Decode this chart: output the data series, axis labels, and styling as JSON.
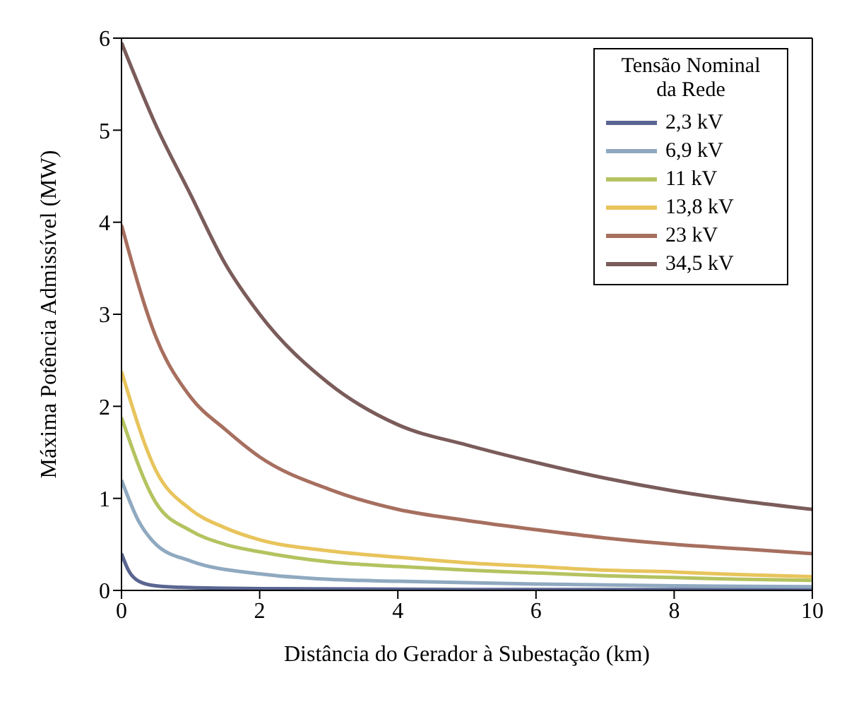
{
  "chart_data": {
    "type": "line",
    "xlabel": "Distância do Gerador à Subestação (km)",
    "ylabel": "Máxima Potência Admissível (MW)",
    "legend_title": "Tensão Nominal da Rede",
    "legend": "top right",
    "grid": false,
    "marker": "none",
    "line_style": "solid",
    "xlim": [
      0,
      10
    ],
    "xticks": [
      0,
      2,
      4,
      6,
      8,
      10
    ],
    "ylim": [
      0,
      6
    ],
    "yticks": [
      0,
      1,
      2,
      3,
      4,
      5,
      6
    ],
    "series": [
      {
        "name": "2,3 kV",
        "color": "#5a6591",
        "x": [
          0,
          0.1,
          0.25,
          0.5,
          1,
          2,
          5,
          10
        ],
        "values": [
          0.4,
          0.22,
          0.1,
          0.05,
          0.03,
          0.02,
          0.01,
          0.01
        ]
      },
      {
        "name": "6,9 kV",
        "color": "#8fa9c0",
        "x": [
          0,
          0.25,
          0.5,
          1,
          2,
          3,
          4,
          6,
          8,
          10
        ],
        "values": [
          1.2,
          0.75,
          0.5,
          0.32,
          0.18,
          0.12,
          0.1,
          0.07,
          0.05,
          0.04
        ]
      },
      {
        "name": "11 kV",
        "color": "#b5c360",
        "x": [
          0,
          0.5,
          1,
          1.5,
          2,
          3,
          4,
          5,
          6,
          7,
          8,
          9,
          10
        ],
        "values": [
          1.88,
          0.95,
          0.65,
          0.5,
          0.42,
          0.31,
          0.26,
          0.22,
          0.19,
          0.16,
          0.14,
          0.12,
          0.11
        ]
      },
      {
        "name": "13,8 kV",
        "color": "#e8c45c",
        "x": [
          0,
          0.5,
          1,
          1.5,
          2,
          3,
          4,
          5,
          6,
          7,
          8,
          9,
          10
        ],
        "values": [
          2.38,
          1.3,
          0.88,
          0.68,
          0.55,
          0.43,
          0.36,
          0.3,
          0.26,
          0.22,
          0.2,
          0.17,
          0.15
        ]
      },
      {
        "name": "23 kV",
        "color": "#a76f5f",
        "x": [
          0,
          0.5,
          1,
          1.5,
          2,
          3,
          4,
          5,
          6,
          7,
          8,
          9,
          10
        ],
        "values": [
          3.97,
          2.75,
          2.1,
          1.75,
          1.45,
          1.1,
          0.88,
          0.76,
          0.66,
          0.57,
          0.5,
          0.45,
          0.4
        ]
      },
      {
        "name": "34,5 kV",
        "color": "#7a5c5a",
        "x": [
          0,
          0.5,
          1,
          1.5,
          2,
          3,
          4,
          5,
          6,
          7,
          8,
          9,
          10
        ],
        "values": [
          5.95,
          5.05,
          4.3,
          3.55,
          3.0,
          2.25,
          1.8,
          1.58,
          1.39,
          1.22,
          1.08,
          0.97,
          0.88
        ]
      }
    ]
  }
}
